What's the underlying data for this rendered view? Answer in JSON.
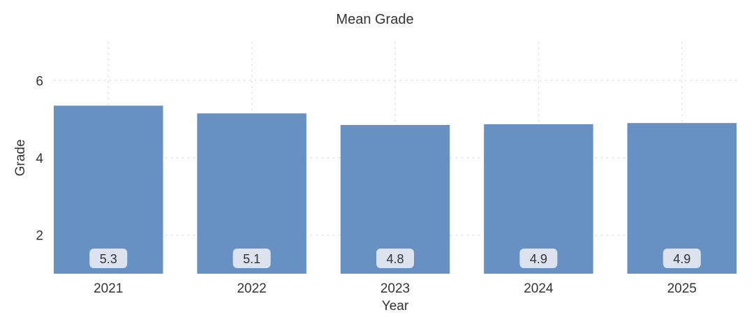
{
  "chart_data": {
    "type": "bar",
    "title": "Mean Grade",
    "xlabel": "Year",
    "ylabel": "Grade",
    "categories": [
      "2021",
      "2022",
      "2023",
      "2024",
      "2025"
    ],
    "values": [
      5.35,
      5.15,
      4.85,
      4.87,
      4.9
    ],
    "value_labels": [
      "5.3",
      "5.1",
      "4.8",
      "4.9",
      "4.9"
    ],
    "y_ticks": [
      2,
      4,
      6
    ],
    "ylim": [
      1,
      7
    ],
    "grid": true,
    "bar_color": "#6691c2",
    "label_box_color": "#dde2ef"
  }
}
